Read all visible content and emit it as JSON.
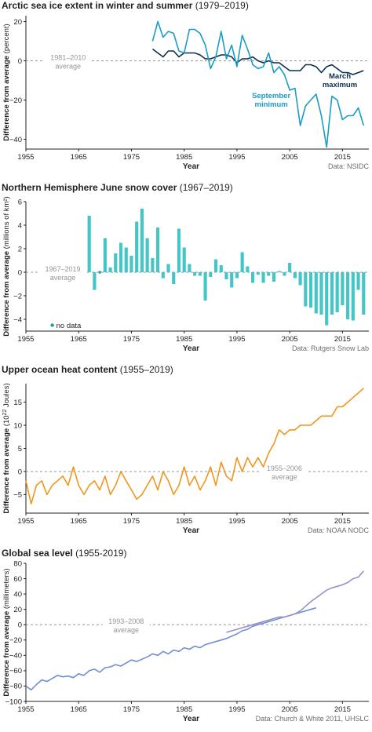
{
  "chart_data": [
    {
      "type": "line",
      "title": "Arctic sea ice extent in winter and summer",
      "title_years": "(1979–2019)",
      "ylabel": "Difference from average",
      "ylabel_unit": "(percent)",
      "xlabel": "Year",
      "source": "Data: NSIDC",
      "average_label": [
        "1981–2010",
        "average"
      ],
      "xlim": [
        1955,
        2020
      ],
      "ylim": [
        -45,
        23
      ],
      "yticks": [
        20,
        0,
        -20,
        -40
      ],
      "xticks": [
        1955,
        1965,
        1975,
        1985,
        1995,
        2005,
        2015
      ],
      "series": [
        {
          "name": "March maximum",
          "label_lines": [
            "March",
            "maximum"
          ],
          "color": "#0b2f4e",
          "x": [
            1979,
            1980,
            1981,
            1982,
            1983,
            1984,
            1985,
            1986,
            1987,
            1988,
            1989,
            1990,
            1991,
            1992,
            1993,
            1994,
            1995,
            1996,
            1997,
            1998,
            1999,
            2000,
            2001,
            2002,
            2003,
            2004,
            2005,
            2006,
            2007,
            2008,
            2009,
            2010,
            2011,
            2012,
            2013,
            2014,
            2015,
            2016,
            2017,
            2018,
            2019
          ],
          "values": [
            6,
            4,
            2,
            5,
            5,
            2,
            4,
            4,
            4,
            3,
            1,
            1,
            2,
            3,
            3,
            2,
            -1,
            1,
            1,
            2,
            0,
            -1,
            0,
            -1,
            -1,
            -3,
            -5,
            -5,
            -5,
            -2,
            -2,
            -3,
            -6,
            -3,
            -2,
            -4,
            -6,
            -6,
            -7,
            -6,
            -5
          ]
        },
        {
          "name": "September minimum",
          "label_lines": [
            "September",
            "minimum"
          ],
          "color": "#1a9cc7",
          "x": [
            1979,
            1980,
            1981,
            1982,
            1983,
            1984,
            1985,
            1986,
            1987,
            1988,
            1989,
            1990,
            1991,
            1992,
            1993,
            1994,
            1995,
            1996,
            1997,
            1998,
            1999,
            2000,
            2001,
            2002,
            2003,
            2004,
            2005,
            2006,
            2007,
            2008,
            2009,
            2010,
            2011,
            2012,
            2013,
            2014,
            2015,
            2016,
            2017,
            2018,
            2019
          ],
          "values": [
            10,
            20,
            12,
            15,
            14,
            5,
            4,
            16,
            16,
            14,
            8,
            -4,
            2,
            15,
            1,
            8,
            -3,
            13,
            6,
            -2,
            -4,
            -3,
            4,
            -6,
            -3,
            -7,
            -15,
            -14,
            -33,
            -23,
            -20,
            -17,
            -28,
            -44,
            -18,
            -20,
            -30,
            -28,
            -28,
            -24,
            -33
          ]
        }
      ]
    },
    {
      "type": "bar",
      "title": "Northern Hemisphere June snow cover",
      "title_years": "(1967–2019)",
      "ylabel": "Difference from average",
      "ylabel_unit": "(millions of km²)",
      "xlabel": "Year",
      "source": "Data: Rutgers Snow Lab",
      "average_label": [
        "1967–2019",
        "average"
      ],
      "no_data_label": "no data",
      "no_data_color": "#12a39b",
      "color": "#44c6c6",
      "xlim": [
        1955,
        2020
      ],
      "ylim": [
        -5,
        6
      ],
      "yticks": [
        6,
        4,
        2,
        0,
        -2,
        -4
      ],
      "xticks": [
        1955,
        1965,
        1975,
        1985,
        1995,
        2005,
        2015
      ],
      "x": [
        1967,
        1968,
        1969,
        1970,
        1971,
        1972,
        1973,
        1974,
        1975,
        1976,
        1977,
        1978,
        1979,
        1980,
        1981,
        1982,
        1983,
        1984,
        1985,
        1986,
        1987,
        1988,
        1989,
        1990,
        1991,
        1992,
        1993,
        1994,
        1995,
        1996,
        1997,
        1998,
        1999,
        2000,
        2001,
        2002,
        2003,
        2004,
        2005,
        2006,
        2007,
        2008,
        2009,
        2010,
        2011,
        2012,
        2013,
        2014,
        2015,
        2016,
        2017,
        2018,
        2019
      ],
      "values": [
        4.8,
        -1.5,
        null,
        2.9,
        0.4,
        1.6,
        2.5,
        2.1,
        1.4,
        4.3,
        5.4,
        2.9,
        1.2,
        3.8,
        -0.5,
        0.7,
        -1,
        3.7,
        2.1,
        0.7,
        -0.3,
        -0.3,
        -2.4,
        -0.4,
        1.1,
        0.6,
        -0.6,
        -1.3,
        -0.5,
        1.7,
        0.5,
        -0.9,
        -0.2,
        -0.9,
        -0.3,
        -0.8,
        0.1,
        -0.3,
        0.8,
        -0.5,
        -1.1,
        -2.9,
        -3,
        -3.5,
        -3.6,
        -4.5,
        -3.6,
        -3.4,
        -2.8,
        -4,
        -4.1,
        -1.5,
        -3.6
      ]
    },
    {
      "type": "line",
      "title": "Upper ocean heat content",
      "title_years": "(1955–2019)",
      "ylabel": "Difference from average",
      "ylabel_unit_pre": "(10",
      "ylabel_unit_sup": "22",
      "ylabel_unit_post": " Joules)",
      "xlabel": "Year",
      "source": "Data: NOAA NODC",
      "average_label": [
        "1955–2006",
        "average"
      ],
      "xlim": [
        1955,
        2020
      ],
      "ylim": [
        -9,
        19
      ],
      "yticks": [
        15,
        10,
        5,
        0,
        -5
      ],
      "xticks": [
        1955,
        1965,
        1975,
        1985,
        1995,
        2005,
        2015
      ],
      "series": [
        {
          "name": "",
          "color": "#f0961d",
          "x": [
            1955,
            1956,
            1957,
            1958,
            1959,
            1960,
            1961,
            1962,
            1963,
            1964,
            1965,
            1966,
            1967,
            1968,
            1969,
            1970,
            1971,
            1972,
            1973,
            1974,
            1975,
            1976,
            1977,
            1978,
            1979,
            1980,
            1981,
            1982,
            1983,
            1984,
            1985,
            1986,
            1987,
            1988,
            1989,
            1990,
            1991,
            1992,
            1993,
            1994,
            1995,
            1996,
            1997,
            1998,
            1999,
            2000,
            2001,
            2002,
            2003,
            2004,
            2005,
            2006,
            2007,
            2008,
            2009,
            2010,
            2011,
            2012,
            2013,
            2014,
            2015,
            2016,
            2017,
            2018,
            2019
          ],
          "values": [
            -2,
            -7,
            -3,
            -2,
            -5,
            -3,
            -2,
            -1,
            -3,
            1,
            -3,
            -5,
            -3,
            -2,
            -4,
            -1,
            -5,
            -3,
            0,
            -2,
            -4,
            -6,
            -5,
            -3,
            -1,
            -4,
            0,
            -2,
            -5,
            -3,
            1,
            -3,
            -1,
            -4,
            -2,
            1,
            -3,
            2,
            -1,
            -2,
            3,
            0,
            3,
            1,
            3,
            1,
            4,
            6,
            9,
            8,
            9,
            9,
            10,
            10,
            10,
            11,
            12,
            12,
            12,
            14,
            14,
            15,
            16,
            17,
            18
          ]
        }
      ]
    },
    {
      "type": "line",
      "title": "Global sea level",
      "title_years": "(1955-2019)",
      "ylabel": "Difference from average",
      "ylabel_unit": "(millimeters)",
      "xlabel": "Year",
      "source": "Data: Church & White 2011, UHSLC",
      "average_label": [
        "1993–2008",
        "average"
      ],
      "xlim": [
        1955,
        2020
      ],
      "ylim": [
        -100,
        80
      ],
      "yticks": [
        80,
        60,
        40,
        20,
        0,
        -20,
        -40,
        -60,
        -80,
        -100
      ],
      "xticks": [
        1955,
        1965,
        1975,
        1985,
        1995,
        2005,
        2015
      ],
      "series": [
        {
          "name": "",
          "color": "#6f8fd6",
          "x": [
            1955,
            1956,
            1957,
            1958,
            1959,
            1960,
            1961,
            1962,
            1963,
            1964,
            1965,
            1966,
            1967,
            1968,
            1969,
            1970,
            1971,
            1972,
            1973,
            1974,
            1975,
            1976,
            1977,
            1978,
            1979,
            1980,
            1981,
            1982,
            1983,
            1984,
            1985,
            1986,
            1987,
            1988,
            1989,
            1990,
            1991,
            1992,
            1993,
            1994,
            1995,
            1996,
            1997,
            1998,
            1999,
            2000,
            2001,
            2002,
            2003,
            2004,
            2005,
            2006,
            2007,
            2008,
            2009,
            2010
          ],
          "values": [
            -80,
            -85,
            -78,
            -72,
            -74,
            -70,
            -66,
            -68,
            -67,
            -69,
            -64,
            -66,
            -60,
            -58,
            -62,
            -56,
            -55,
            -52,
            -54,
            -50,
            -46,
            -48,
            -45,
            -42,
            -38,
            -40,
            -35,
            -38,
            -33,
            -35,
            -30,
            -32,
            -28,
            -30,
            -26,
            -24,
            -22,
            -20,
            -18,
            -15,
            -12,
            -8,
            -6,
            -2,
            0,
            2,
            4,
            6,
            8,
            10,
            12,
            14,
            16,
            18,
            20,
            22
          ]
        },
        {
          "name": "",
          "color": "#9a90c6",
          "x": [
            1993,
            1994,
            1995,
            1996,
            1997,
            1998,
            1999,
            2000,
            2001,
            2002,
            2003,
            2004,
            2005,
            2006,
            2007,
            2008,
            2009,
            2010,
            2011,
            2012,
            2013,
            2014,
            2015,
            2016,
            2017,
            2018,
            2019
          ],
          "values": [
            -10,
            -8,
            -6,
            -4,
            -2,
            0,
            2,
            4,
            6,
            8,
            10,
            10,
            12,
            14,
            18,
            24,
            30,
            35,
            40,
            45,
            48,
            50,
            52,
            55,
            60,
            62,
            70
          ]
        }
      ]
    }
  ]
}
